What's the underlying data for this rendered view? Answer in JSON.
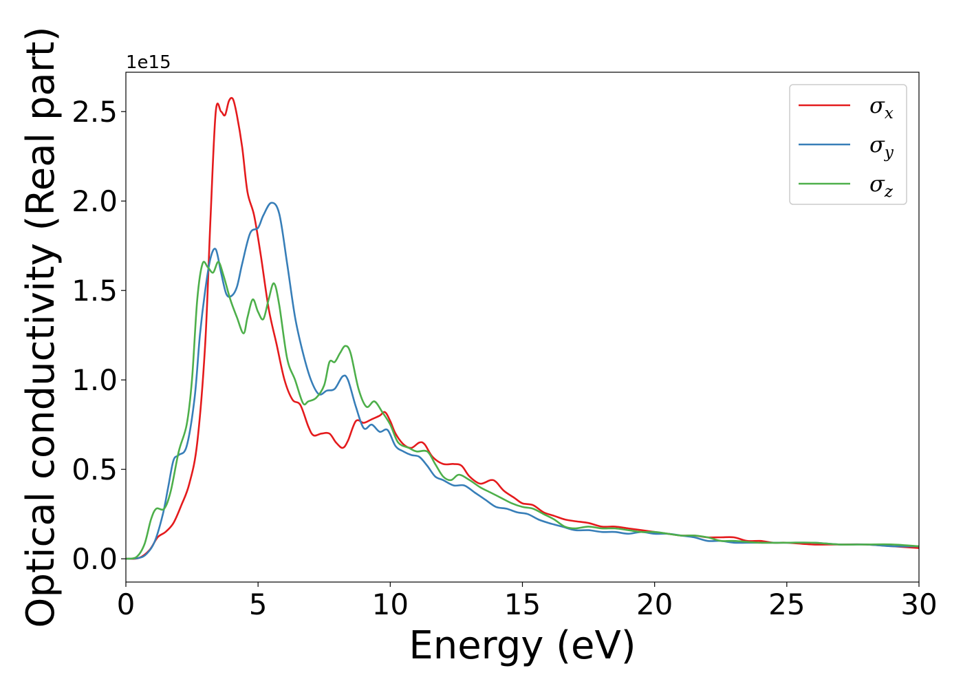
{
  "chart_data": {
    "type": "line",
    "xlabel": "Energy (eV)",
    "ylabel": "Optical conductivity (Real part)",
    "y_offset_text": "1e15",
    "xlim": [
      0,
      30
    ],
    "ylim": [
      -0.13,
      2.72
    ],
    "x_ticks": [
      0,
      5,
      10,
      15,
      20,
      25,
      30
    ],
    "x_tick_labels": [
      "0",
      "5",
      "10",
      "15",
      "20",
      "25",
      "30"
    ],
    "y_ticks": [
      0.0,
      0.5,
      1.0,
      1.5,
      2.0,
      2.5
    ],
    "y_tick_labels": [
      "0.0",
      "0.5",
      "1.0",
      "1.5",
      "2.0",
      "2.5"
    ],
    "y_units_scale": 1000000000000000.0,
    "grid": false,
    "legend_position": "upper-right",
    "series": [
      {
        "name": "σx",
        "symbol": "σ",
        "subscript": "x",
        "color": "#e41a1c",
        "points": [
          [
            0,
            0
          ],
          [
            0.5,
            0.005
          ],
          [
            0.9,
            0.05
          ],
          [
            1.2,
            0.12
          ],
          [
            1.5,
            0.15
          ],
          [
            1.8,
            0.2
          ],
          [
            2.1,
            0.3
          ],
          [
            2.4,
            0.42
          ],
          [
            2.7,
            0.65
          ],
          [
            3.0,
            1.2
          ],
          [
            3.2,
            1.9
          ],
          [
            3.4,
            2.5
          ],
          [
            3.6,
            2.5
          ],
          [
            3.75,
            2.48
          ],
          [
            3.9,
            2.56
          ],
          [
            4.05,
            2.57
          ],
          [
            4.2,
            2.48
          ],
          [
            4.4,
            2.3
          ],
          [
            4.6,
            2.05
          ],
          [
            4.85,
            1.92
          ],
          [
            5.1,
            1.7
          ],
          [
            5.4,
            1.4
          ],
          [
            5.7,
            1.2
          ],
          [
            6.0,
            1.0
          ],
          [
            6.3,
            0.89
          ],
          [
            6.6,
            0.86
          ],
          [
            6.9,
            0.74
          ],
          [
            7.1,
            0.69
          ],
          [
            7.4,
            0.7
          ],
          [
            7.7,
            0.7
          ],
          [
            7.95,
            0.65
          ],
          [
            8.2,
            0.62
          ],
          [
            8.4,
            0.66
          ],
          [
            8.7,
            0.77
          ],
          [
            9.0,
            0.76
          ],
          [
            9.3,
            0.78
          ],
          [
            9.6,
            0.8
          ],
          [
            9.8,
            0.82
          ],
          [
            10.0,
            0.77
          ],
          [
            10.2,
            0.7
          ],
          [
            10.5,
            0.64
          ],
          [
            10.8,
            0.62
          ],
          [
            11.1,
            0.65
          ],
          [
            11.3,
            0.64
          ],
          [
            11.6,
            0.57
          ],
          [
            12.0,
            0.53
          ],
          [
            12.4,
            0.53
          ],
          [
            12.7,
            0.52
          ],
          [
            13.0,
            0.46
          ],
          [
            13.4,
            0.42
          ],
          [
            13.8,
            0.44
          ],
          [
            14.0,
            0.43
          ],
          [
            14.3,
            0.38
          ],
          [
            14.7,
            0.34
          ],
          [
            15.0,
            0.31
          ],
          [
            15.4,
            0.3
          ],
          [
            15.8,
            0.26
          ],
          [
            16.2,
            0.24
          ],
          [
            16.6,
            0.22
          ],
          [
            17.0,
            0.21
          ],
          [
            17.5,
            0.2
          ],
          [
            18.0,
            0.18
          ],
          [
            18.5,
            0.18
          ],
          [
            19.0,
            0.17
          ],
          [
            19.5,
            0.16
          ],
          [
            20.0,
            0.15
          ],
          [
            20.5,
            0.14
          ],
          [
            21.0,
            0.13
          ],
          [
            21.5,
            0.13
          ],
          [
            22.0,
            0.12
          ],
          [
            22.5,
            0.12
          ],
          [
            23.0,
            0.12
          ],
          [
            23.5,
            0.1
          ],
          [
            24.0,
            0.1
          ],
          [
            24.5,
            0.09
          ],
          [
            25.0,
            0.09
          ],
          [
            26.0,
            0.08
          ],
          [
            27.0,
            0.08
          ],
          [
            28.0,
            0.08
          ],
          [
            29.0,
            0.07
          ],
          [
            30.0,
            0.06
          ]
        ]
      },
      {
        "name": "σy",
        "symbol": "σ",
        "subscript": "y",
        "color": "#377eb8",
        "points": [
          [
            0,
            0
          ],
          [
            0.5,
            0.005
          ],
          [
            0.8,
            0.03
          ],
          [
            1.1,
            0.1
          ],
          [
            1.4,
            0.25
          ],
          [
            1.6,
            0.4
          ],
          [
            1.8,
            0.55
          ],
          [
            2.0,
            0.58
          ],
          [
            2.3,
            0.63
          ],
          [
            2.6,
            0.9
          ],
          [
            2.8,
            1.25
          ],
          [
            3.0,
            1.5
          ],
          [
            3.2,
            1.68
          ],
          [
            3.4,
            1.73
          ],
          [
            3.6,
            1.6
          ],
          [
            3.8,
            1.48
          ],
          [
            4.0,
            1.47
          ],
          [
            4.2,
            1.52
          ],
          [
            4.4,
            1.65
          ],
          [
            4.7,
            1.82
          ],
          [
            5.0,
            1.85
          ],
          [
            5.2,
            1.92
          ],
          [
            5.5,
            1.99
          ],
          [
            5.8,
            1.93
          ],
          [
            6.1,
            1.65
          ],
          [
            6.4,
            1.35
          ],
          [
            6.7,
            1.15
          ],
          [
            7.0,
            1.0
          ],
          [
            7.3,
            0.92
          ],
          [
            7.6,
            0.94
          ],
          [
            7.9,
            0.95
          ],
          [
            8.2,
            1.02
          ],
          [
            8.4,
            1.0
          ],
          [
            8.7,
            0.85
          ],
          [
            9.0,
            0.73
          ],
          [
            9.3,
            0.75
          ],
          [
            9.6,
            0.71
          ],
          [
            9.9,
            0.72
          ],
          [
            10.2,
            0.63
          ],
          [
            10.5,
            0.6
          ],
          [
            10.8,
            0.58
          ],
          [
            11.1,
            0.57
          ],
          [
            11.4,
            0.52
          ],
          [
            11.7,
            0.46
          ],
          [
            12.0,
            0.44
          ],
          [
            12.4,
            0.41
          ],
          [
            12.8,
            0.41
          ],
          [
            13.2,
            0.37
          ],
          [
            13.6,
            0.33
          ],
          [
            14.0,
            0.29
          ],
          [
            14.4,
            0.28
          ],
          [
            14.8,
            0.26
          ],
          [
            15.2,
            0.25
          ],
          [
            15.6,
            0.22
          ],
          [
            16.0,
            0.2
          ],
          [
            16.5,
            0.18
          ],
          [
            17.0,
            0.16
          ],
          [
            17.5,
            0.16
          ],
          [
            18.0,
            0.15
          ],
          [
            18.5,
            0.15
          ],
          [
            19.0,
            0.14
          ],
          [
            19.5,
            0.15
          ],
          [
            20.0,
            0.14
          ],
          [
            20.5,
            0.14
          ],
          [
            21.0,
            0.13
          ],
          [
            21.5,
            0.12
          ],
          [
            22.0,
            0.1
          ],
          [
            22.5,
            0.1
          ],
          [
            23.0,
            0.09
          ],
          [
            23.5,
            0.09
          ],
          [
            24.0,
            0.09
          ],
          [
            25.0,
            0.09
          ],
          [
            26.0,
            0.09
          ],
          [
            27.0,
            0.08
          ],
          [
            28.0,
            0.08
          ],
          [
            29.0,
            0.07
          ],
          [
            30.0,
            0.07
          ]
        ]
      },
      {
        "name": "σz",
        "symbol": "σ",
        "subscript": "z",
        "color": "#4daf4a",
        "points": [
          [
            0,
            0
          ],
          [
            0.4,
            0.01
          ],
          [
            0.7,
            0.08
          ],
          [
            0.95,
            0.22
          ],
          [
            1.15,
            0.28
          ],
          [
            1.45,
            0.28
          ],
          [
            1.7,
            0.38
          ],
          [
            2.0,
            0.6
          ],
          [
            2.3,
            0.75
          ],
          [
            2.5,
            1.0
          ],
          [
            2.7,
            1.45
          ],
          [
            2.9,
            1.65
          ],
          [
            3.1,
            1.63
          ],
          [
            3.3,
            1.6
          ],
          [
            3.5,
            1.66
          ],
          [
            3.7,
            1.58
          ],
          [
            3.95,
            1.45
          ],
          [
            4.2,
            1.35
          ],
          [
            4.45,
            1.26
          ],
          [
            4.6,
            1.35
          ],
          [
            4.8,
            1.45
          ],
          [
            5.0,
            1.38
          ],
          [
            5.2,
            1.34
          ],
          [
            5.4,
            1.45
          ],
          [
            5.6,
            1.54
          ],
          [
            5.8,
            1.42
          ],
          [
            6.1,
            1.12
          ],
          [
            6.4,
            1.0
          ],
          [
            6.7,
            0.87
          ],
          [
            6.9,
            0.88
          ],
          [
            7.2,
            0.9
          ],
          [
            7.5,
            0.97
          ],
          [
            7.7,
            1.1
          ],
          [
            7.9,
            1.1
          ],
          [
            8.1,
            1.15
          ],
          [
            8.3,
            1.19
          ],
          [
            8.5,
            1.15
          ],
          [
            8.8,
            0.95
          ],
          [
            9.1,
            0.85
          ],
          [
            9.4,
            0.88
          ],
          [
            9.7,
            0.82
          ],
          [
            10.0,
            0.75
          ],
          [
            10.3,
            0.65
          ],
          [
            10.7,
            0.62
          ],
          [
            11.0,
            0.6
          ],
          [
            11.4,
            0.6
          ],
          [
            11.7,
            0.53
          ],
          [
            12.0,
            0.46
          ],
          [
            12.3,
            0.44
          ],
          [
            12.6,
            0.47
          ],
          [
            13.0,
            0.44
          ],
          [
            13.4,
            0.4
          ],
          [
            13.8,
            0.37
          ],
          [
            14.2,
            0.34
          ],
          [
            14.6,
            0.31
          ],
          [
            15.0,
            0.29
          ],
          [
            15.4,
            0.28
          ],
          [
            15.8,
            0.25
          ],
          [
            16.2,
            0.22
          ],
          [
            16.6,
            0.18
          ],
          [
            17.0,
            0.17
          ],
          [
            17.5,
            0.18
          ],
          [
            18.0,
            0.17
          ],
          [
            18.5,
            0.17
          ],
          [
            19.0,
            0.16
          ],
          [
            19.5,
            0.15
          ],
          [
            20.0,
            0.15
          ],
          [
            20.5,
            0.14
          ],
          [
            21.0,
            0.13
          ],
          [
            21.5,
            0.13
          ],
          [
            22.0,
            0.12
          ],
          [
            22.5,
            0.1
          ],
          [
            23.0,
            0.1
          ],
          [
            24.0,
            0.09
          ],
          [
            25.0,
            0.09
          ],
          [
            26.0,
            0.09
          ],
          [
            27.0,
            0.08
          ],
          [
            28.0,
            0.08
          ],
          [
            29.0,
            0.08
          ],
          [
            30.0,
            0.07
          ]
        ]
      }
    ]
  }
}
